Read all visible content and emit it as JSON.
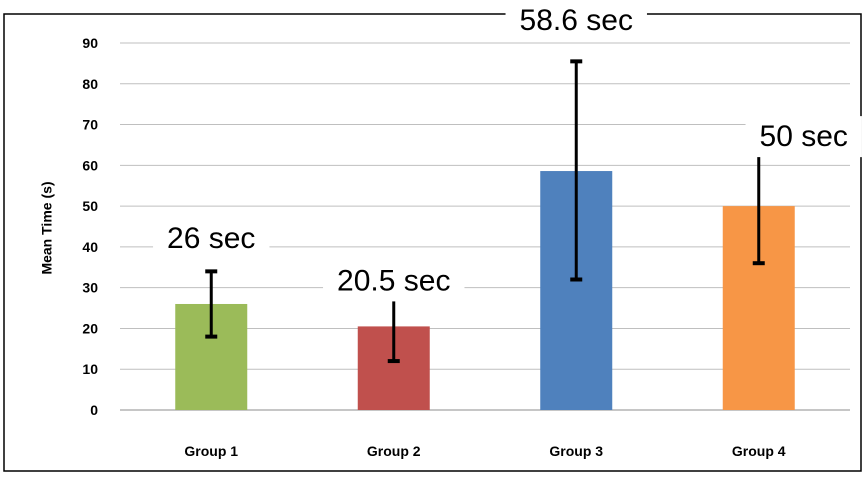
{
  "chart_data": {
    "type": "bar",
    "title": "",
    "xlabel": "",
    "ylabel": "Mean Time (s)",
    "ylim": [
      0,
      90
    ],
    "yticks": [
      0,
      10,
      20,
      30,
      40,
      50,
      60,
      70,
      80,
      90
    ],
    "grid": true,
    "categories": [
      "Group 1",
      "Group 2",
      "Group 3",
      "Group 4"
    ],
    "values": [
      26,
      20.5,
      58.6,
      50
    ],
    "error_low": [
      18,
      12,
      32,
      36
    ],
    "error_high": [
      34,
      29,
      85.5,
      63.5
    ],
    "data_labels": [
      "26 sec",
      "20.5 sec",
      "58.6 sec",
      "50 sec"
    ],
    "colors": [
      "#9BBB59",
      "#C0504D",
      "#4F81BD",
      "#F79646"
    ]
  }
}
